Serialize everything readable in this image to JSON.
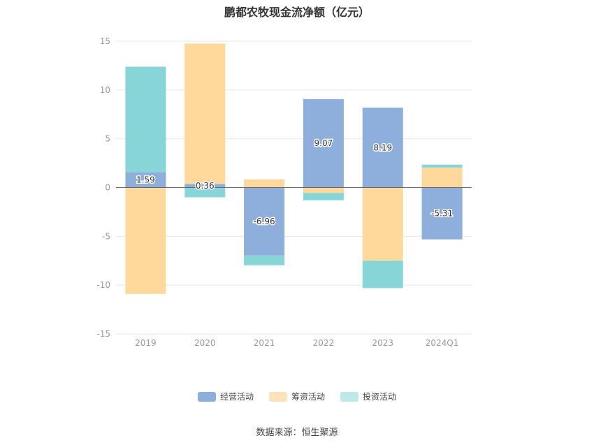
{
  "title": "鹏都农牧现金流净额（亿元）",
  "source": "数据来源：恒生聚源",
  "colors": {
    "operating": "#8eaedb",
    "financing": "#fed99b",
    "investing": "#88d5d8",
    "grid": "#e4e7ee",
    "zero_line": "#666666",
    "axis_text": "#999999"
  },
  "legend": [
    {
      "name": "经营活动",
      "color_key": "operating",
      "swatch_color": "#8eaedb"
    },
    {
      "name": "筹资活动",
      "color_key": "financing",
      "swatch_color": "#fde3b8"
    },
    {
      "name": "投资活动",
      "color_key": "investing",
      "swatch_color": "#bfe8ea"
    }
  ],
  "chart_data": {
    "type": "bar",
    "stacked": true,
    "title": "鹏都农牧现金流净额（亿元）",
    "categories": [
      "2019",
      "2020",
      "2021",
      "2022",
      "2023",
      "2024Q1"
    ],
    "ylim": [
      -15,
      15
    ],
    "yticks": [
      15,
      10,
      5,
      0,
      -5,
      -10,
      -15
    ],
    "grid": true,
    "legend_position": "bottom",
    "series": [
      {
        "name": "经营活动",
        "key": "operating",
        "values": [
          1.59,
          0.36,
          -6.96,
          9.07,
          8.19,
          -5.31
        ],
        "labels": [
          "1.59",
          "0.36",
          "-6.96",
          "9.07",
          "8.19",
          "-5.31"
        ]
      },
      {
        "name": "筹资活动",
        "key": "financing",
        "values": [
          -10.9,
          14.4,
          0.85,
          -0.55,
          -7.5,
          2.05
        ]
      },
      {
        "name": "投资活动",
        "key": "investing",
        "values": [
          10.8,
          -1.0,
          -1.0,
          -0.75,
          -2.8,
          0.3
        ]
      }
    ]
  }
}
